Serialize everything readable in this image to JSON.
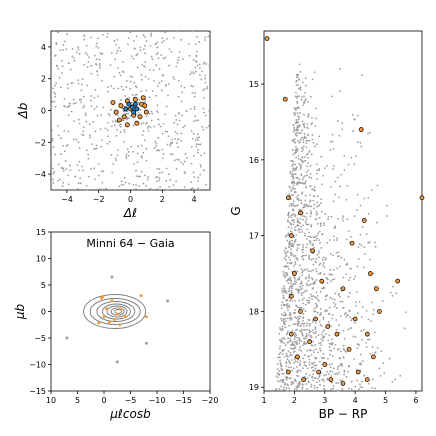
{
  "chart_data": [
    {
      "type": "scatter",
      "panel": "spatial",
      "xlabel": "Δℓ",
      "ylabel": "Δb",
      "xlim": [
        -5,
        5
      ],
      "ylim": [
        -5,
        5
      ],
      "xticks": [
        -4,
        -2,
        0,
        2,
        4
      ],
      "yticks": [
        -4,
        -2,
        0,
        2,
        4
      ],
      "series": [
        {
          "role": "field",
          "color": "#9e9e9e"
        },
        {
          "role": "members",
          "color": "#f39c3f",
          "points": [
            [
              -0.2,
              0.6
            ],
            [
              0.3,
              0.7
            ],
            [
              -0.6,
              0.3
            ],
            [
              0.7,
              0.4
            ],
            [
              0.9,
              0.3
            ],
            [
              -0.9,
              -0.1
            ],
            [
              -0.4,
              -0.4
            ],
            [
              0.2,
              -0.3
            ],
            [
              0.6,
              -0.4
            ],
            [
              1.0,
              -0.1
            ],
            [
              -0.2,
              -0.9
            ],
            [
              0.4,
              -0.8
            ],
            [
              -0.7,
              -0.6
            ],
            [
              0.0,
              0.1
            ],
            [
              0.8,
              0.8
            ],
            [
              -1.1,
              0.5
            ]
          ]
        },
        {
          "role": "members-core",
          "color": "#1f7fc0",
          "points": [
            [
              0.1,
              0.2
            ],
            [
              -0.1,
              0.4
            ],
            [
              0.4,
              0.1
            ],
            [
              0.2,
              -0.1
            ],
            [
              -0.3,
              0.1
            ],
            [
              0.3,
              0.4
            ]
          ]
        }
      ]
    },
    {
      "type": "scatter",
      "panel": "proper-motion",
      "title": "Minni 64  −  Gaia",
      "xlabel": "μℓcosb",
      "ylabel": "μb",
      "xlim": [
        10,
        -20
      ],
      "ylim": [
        -15,
        15
      ],
      "xticks": [
        10,
        5,
        0,
        -5,
        -10,
        -15,
        -20
      ],
      "yticks": [
        -15,
        -10,
        -5,
        0,
        5,
        10,
        15
      ],
      "contour_center": [
        -2,
        0
      ],
      "series": [
        {
          "role": "members",
          "color": "#f39c3f",
          "points": [
            [
              -1,
              -2
            ],
            [
              -2,
              -1.5
            ],
            [
              0,
              -1
            ],
            [
              -3,
              0.5
            ],
            [
              0.5,
              2.5
            ],
            [
              -1.5,
              2
            ],
            [
              -4,
              -1
            ],
            [
              -0.5,
              0.5
            ],
            [
              -2.5,
              -0.5
            ],
            [
              1,
              -2.2
            ],
            [
              -8,
              -1
            ],
            [
              -7,
              3
            ],
            [
              0.2,
              2.8
            ],
            [
              -3,
              -2.5
            ]
          ]
        },
        {
          "role": "outliers",
          "color": "#9e9e9e",
          "points": [
            [
              -1.5,
              6.5
            ],
            [
              -12,
              2
            ],
            [
              -8,
              -6
            ],
            [
              7,
              -5
            ],
            [
              -2.5,
              -9.5
            ]
          ]
        }
      ]
    },
    {
      "type": "scatter",
      "panel": "cmd",
      "xlabel": "BP − RP",
      "ylabel": "G",
      "xlim": [
        1,
        6.2
      ],
      "ylim": [
        19.05,
        14.3
      ],
      "xticks": [
        1,
        2,
        3,
        4,
        5,
        6
      ],
      "yticks": [
        15,
        16,
        17,
        18,
        19
      ],
      "series": [
        {
          "role": "members",
          "color": "#f39c3f",
          "points": [
            [
              1.1,
              14.4
            ],
            [
              1.7,
              15.2
            ],
            [
              4.2,
              15.6
            ],
            [
              1.8,
              16.5
            ],
            [
              2.2,
              16.7
            ],
            [
              4.3,
              16.8
            ],
            [
              6.2,
              16.5
            ],
            [
              1.9,
              17.0
            ],
            [
              2.6,
              17.2
            ],
            [
              3.9,
              17.1
            ],
            [
              2.0,
              17.5
            ],
            [
              2.9,
              17.6
            ],
            [
              4.5,
              17.5
            ],
            [
              5.4,
              17.6
            ],
            [
              1.9,
              17.8
            ],
            [
              3.6,
              17.7
            ],
            [
              4.7,
              17.7
            ],
            [
              2.2,
              18.0
            ],
            [
              2.7,
              18.1
            ],
            [
              3.1,
              18.2
            ],
            [
              4.0,
              18.1
            ],
            [
              4.8,
              18.0
            ],
            [
              1.9,
              18.3
            ],
            [
              2.5,
              18.4
            ],
            [
              3.4,
              18.3
            ],
            [
              4.4,
              18.3
            ],
            [
              2.1,
              18.6
            ],
            [
              3.0,
              18.7
            ],
            [
              3.8,
              18.5
            ],
            [
              4.6,
              18.6
            ],
            [
              2.3,
              18.9
            ],
            [
              3.2,
              18.9
            ],
            [
              4.1,
              18.8
            ],
            [
              1.8,
              18.8
            ],
            [
              3.6,
              18.95
            ],
            [
              2.8,
              18.8
            ],
            [
              4.4,
              18.9
            ]
          ]
        }
      ]
    }
  ]
}
